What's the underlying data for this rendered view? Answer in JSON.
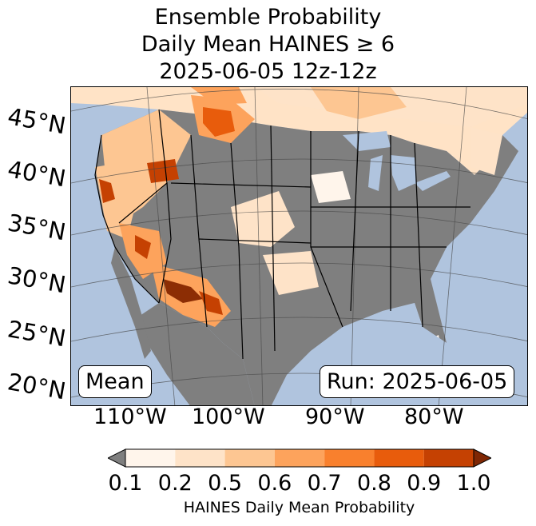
{
  "title": {
    "line1": "Ensemble Probability",
    "line2": "Daily Mean HAINES ≥ 6",
    "line3": "2025-06-05 12z-12z"
  },
  "map": {
    "lat_labels": [
      "45°N",
      "40°N",
      "35°N",
      "30°N",
      "25°N",
      "20°N"
    ],
    "lon_labels": [
      "110°W",
      "100°W",
      "90°W",
      "80°W"
    ],
    "stat_label": "Mean",
    "run_label": "Run: 2025-06-05",
    "colors": {
      "ocean": "#b0c4de",
      "land_below_threshold": "#7f7f7f",
      "canada_mexico_land": "#ffd9b3"
    }
  },
  "colorbar": {
    "label": "HAINES Daily Mean Probability",
    "ticks": [
      "0.1",
      "0.2",
      "0.5",
      "0.6",
      "0.7",
      "0.8",
      "0.9",
      "1.0"
    ],
    "colors": [
      "#fff5eb",
      "#fee3c8",
      "#fdc692",
      "#fda35c",
      "#f9802d",
      "#e85c0c",
      "#c54102",
      "#8c2d04"
    ],
    "under_color": "#7f7f7f",
    "over_color": "#7f2704"
  }
}
